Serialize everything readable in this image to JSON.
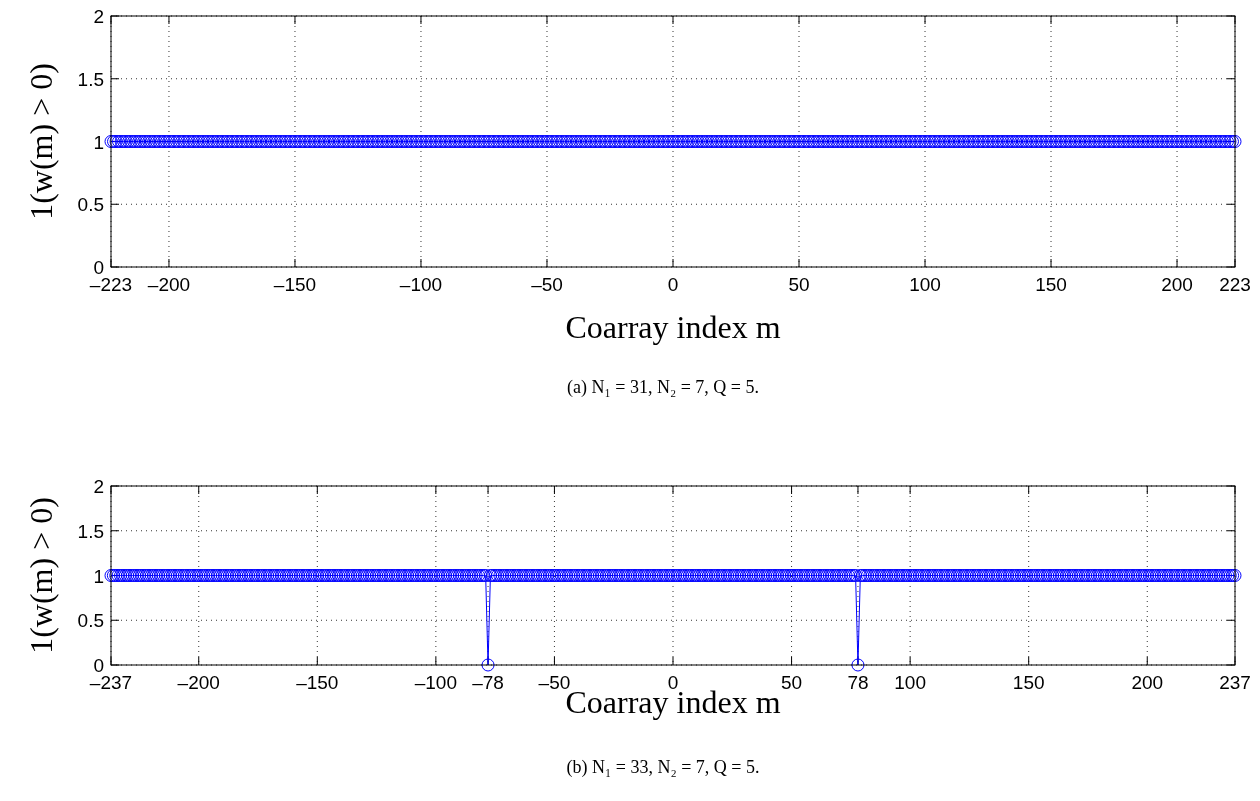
{
  "chart_data": [
    {
      "type": "line",
      "xlabel": "Coarray index m",
      "ylabel": "1(w(m) > 0)",
      "xlim": [
        -223,
        223
      ],
      "ylim": [
        0,
        2
      ],
      "xticks": [
        {
          "value": -223,
          "label": "–223"
        },
        {
          "value": -200,
          "label": "–200"
        },
        {
          "value": -150,
          "label": "–150"
        },
        {
          "value": -100,
          "label": "–100"
        },
        {
          "value": -50,
          "label": "–50"
        },
        0,
        50,
        100,
        150,
        200,
        223
      ],
      "yticks": [
        0,
        0.5,
        1,
        1.5,
        2
      ],
      "grid": true,
      "marker": "circle",
      "line_style": "solid",
      "annotations": [
        "(a) N₁ = 31, N₂ = 7, Q = 5."
      ],
      "x": [
        -223,
        -222,
        -221,
        -220,
        -219,
        -218,
        -217,
        -216,
        -215,
        -214,
        -213,
        -212,
        -211,
        -210,
        -209,
        -208,
        -207,
        -206,
        -205,
        -204,
        -203,
        -202,
        -201,
        -200,
        -199,
        -198,
        -197,
        -196,
        -195,
        -194,
        -193,
        -192,
        -191,
        -190,
        -189,
        -188,
        -187,
        -186,
        -185,
        -184,
        -183,
        -182,
        -181,
        -180,
        -179,
        -178,
        -177,
        -176,
        -175,
        -174,
        -173,
        -172,
        -171,
        -170,
        -169,
        -168,
        -167,
        -166,
        -165,
        -164,
        -163,
        -162,
        -161,
        -160,
        -159,
        -158,
        -157,
        -156,
        -155,
        -154,
        -153,
        -152,
        -151,
        -150,
        -149,
        -148,
        -147,
        -146,
        -145,
        -144,
        -143,
        -142,
        -141,
        -140,
        -139,
        -138,
        -137,
        -136,
        -135,
        -134,
        -133,
        -132,
        -131,
        -130,
        -129,
        -128,
        -127,
        -126,
        -125,
        -124,
        -123,
        -122,
        -121,
        -120,
        -119,
        -118,
        -117,
        -116,
        -115,
        -114,
        -113,
        -112,
        -111,
        -110,
        -109,
        -108,
        -107,
        -106,
        -105,
        -104,
        -103,
        -102,
        -101,
        -100,
        -99,
        -98,
        -97,
        -96,
        -95,
        -94,
        -93,
        -92,
        -91,
        -90,
        -89,
        -88,
        -87,
        -86,
        -85,
        -84,
        -83,
        -82,
        -81,
        -80,
        -79,
        -78,
        -77,
        -76,
        -75,
        -74,
        -73,
        -72,
        -71,
        -70,
        -69,
        -68,
        -67,
        -66,
        -65,
        -64,
        -63,
        -62,
        -61,
        -60,
        -59,
        -58,
        -57,
        -56,
        -55,
        -54,
        -53,
        -52,
        -51,
        -50,
        -49,
        -48,
        -47,
        -46,
        -45,
        -44,
        -43,
        -42,
        -41,
        -40,
        -39,
        -38,
        -37,
        -36,
        -35,
        -34,
        -33,
        -32,
        -31,
        -30,
        -29,
        -28,
        -27,
        -26,
        -25,
        -24,
        -23,
        -22,
        -21,
        -20,
        -19,
        -18,
        -17,
        -16,
        -15,
        -14,
        -13,
        -12,
        -11,
        -10,
        -9,
        -8,
        -7,
        -6,
        -5,
        -4,
        -3,
        -2,
        -1,
        0,
        1,
        2,
        3,
        4,
        5,
        6,
        7,
        8,
        9,
        10,
        11,
        12,
        13,
        14,
        15,
        16,
        17,
        18,
        19,
        20,
        21,
        22,
        23,
        24,
        25,
        26,
        27,
        28,
        29,
        30,
        31,
        32,
        33,
        34,
        35,
        36,
        37,
        38,
        39,
        40,
        41,
        42,
        43,
        44,
        45,
        46,
        47,
        48,
        49,
        50,
        51,
        52,
        53,
        54,
        55,
        56,
        57,
        58,
        59,
        60,
        61,
        62,
        63,
        64,
        65,
        66,
        67,
        68,
        69,
        70,
        71,
        72,
        73,
        74,
        75,
        76,
        77,
        78,
        79,
        80,
        81,
        82,
        83,
        84,
        85,
        86,
        87,
        88,
        89,
        90,
        91,
        92,
        93,
        94,
        95,
        96,
        97,
        98,
        99,
        100,
        101,
        102,
        103,
        104,
        105,
        106,
        107,
        108,
        109,
        110,
        111,
        112,
        113,
        114,
        115,
        116,
        117,
        118,
        119,
        120,
        121,
        122,
        123,
        124,
        125,
        126,
        127,
        128,
        129,
        130,
        131,
        132,
        133,
        134,
        135,
        136,
        137,
        138,
        139,
        140,
        141,
        142,
        143,
        144,
        145,
        146,
        147,
        148,
        149,
        150,
        151,
        152,
        153,
        154,
        155,
        156,
        157,
        158,
        159,
        160,
        161,
        162,
        163,
        164,
        165,
        166,
        167,
        168,
        169,
        170,
        171,
        172,
        173,
        174,
        175,
        176,
        177,
        178,
        179,
        180,
        181,
        182,
        183,
        184,
        185,
        186,
        187,
        188,
        189,
        190,
        191,
        192,
        193,
        194,
        195,
        196,
        197,
        198,
        199,
        200,
        201,
        202,
        203,
        204,
        205,
        206,
        207,
        208,
        209,
        210,
        211,
        212,
        213,
        214,
        215,
        216,
        217,
        218,
        219,
        220,
        221,
        222,
        223
      ],
      "series": [
        {
          "color": "#0000ff",
          "values": [
            1,
            1,
            1,
            1,
            1,
            1,
            1,
            1,
            1,
            1,
            1,
            1,
            1,
            1,
            1,
            1,
            1,
            1,
            1,
            1,
            1,
            1,
            1,
            1,
            1,
            1,
            1,
            1,
            1,
            1,
            1,
            1,
            1,
            1,
            1,
            1,
            1,
            1,
            1,
            1,
            1,
            1,
            1,
            1,
            1,
            1,
            1,
            1,
            1,
            1,
            1,
            1,
            1,
            1,
            1,
            1,
            1,
            1,
            1,
            1,
            1,
            1,
            1,
            1,
            1,
            1,
            1,
            1,
            1,
            1,
            1,
            1,
            1,
            1,
            1,
            1,
            1,
            1,
            1,
            1,
            1,
            1,
            1,
            1,
            1,
            1,
            1,
            1,
            1,
            1,
            1,
            1,
            1,
            1,
            1,
            1,
            1,
            1,
            1,
            1,
            1,
            1,
            1,
            1,
            1,
            1,
            1,
            1,
            1,
            1,
            1,
            1,
            1,
            1,
            1,
            1,
            1,
            1,
            1,
            1,
            1,
            1,
            1,
            1,
            1,
            1,
            1,
            1,
            1,
            1,
            1,
            1,
            1,
            1,
            1,
            1,
            1,
            1,
            1,
            1,
            1,
            1,
            1,
            1,
            1,
            1,
            1,
            1,
            1,
            1,
            1,
            1,
            1,
            1,
            1,
            1,
            1,
            1,
            1,
            1,
            1,
            1,
            1,
            1,
            1,
            1,
            1,
            1,
            1,
            1,
            1,
            1,
            1,
            1,
            1,
            1,
            1,
            1,
            1,
            1,
            1,
            1,
            1,
            1,
            1,
            1,
            1,
            1,
            1,
            1,
            1,
            1,
            1,
            1,
            1,
            1,
            1,
            1,
            1,
            1,
            1,
            1,
            1,
            1,
            1,
            1,
            1,
            1,
            1,
            1,
            1,
            1,
            1,
            1,
            1,
            1,
            1,
            1,
            1,
            1,
            1,
            1,
            1,
            1,
            1,
            1,
            1,
            1,
            1,
            1,
            1,
            1,
            1,
            1,
            1,
            1,
            1,
            1,
            1,
            1,
            1,
            1,
            1,
            1,
            1,
            1,
            1,
            1,
            1,
            1,
            1,
            1,
            1,
            1,
            1,
            1,
            1,
            1,
            1,
            1,
            1,
            1,
            1,
            1,
            1,
            1,
            1,
            1,
            1,
            1,
            1,
            1,
            1,
            1,
            1,
            1,
            1,
            1,
            1,
            1,
            1,
            1,
            1,
            1,
            1,
            1,
            1,
            1,
            1,
            1,
            1,
            1,
            1,
            1,
            1,
            1,
            1,
            1,
            1,
            1,
            1,
            1,
            1,
            1,
            1,
            1,
            1,
            1,
            1,
            1,
            1,
            1,
            1,
            1,
            1,
            1,
            1,
            1,
            1,
            1,
            1,
            1,
            1,
            1,
            1,
            1,
            1,
            1,
            1,
            1,
            1,
            1,
            1,
            1,
            1,
            1,
            1,
            1,
            1,
            1,
            1,
            1,
            1,
            1,
            1,
            1,
            1,
            1,
            1,
            1,
            1,
            1,
            1,
            1,
            1,
            1,
            1,
            1,
            1,
            1,
            1,
            1,
            1,
            1,
            1,
            1,
            1,
            1,
            1,
            1,
            1,
            1,
            1,
            1,
            1,
            1,
            1,
            1,
            1,
            1,
            1,
            1,
            1,
            1,
            1,
            1,
            1,
            1,
            1,
            1,
            1,
            1,
            1,
            1,
            1,
            1,
            1,
            1,
            1,
            1,
            1,
            1,
            1,
            1,
            1,
            1,
            1,
            1,
            1,
            1,
            1,
            1,
            1,
            1,
            1,
            1,
            1,
            1,
            1,
            1,
            1,
            1,
            1,
            1,
            1,
            1,
            1,
            1,
            1,
            1,
            1,
            1,
            1,
            1,
            1,
            1,
            1,
            1,
            1,
            1,
            1,
            1,
            1,
            1,
            1,
            1,
            1
          ]
        }
      ]
    },
    {
      "type": "line",
      "xlabel": "Coarray index m",
      "ylabel": "1(w(m) > 0)",
      "xlim": [
        -237,
        237
      ],
      "ylim": [
        0,
        2
      ],
      "xticks": [
        {
          "value": -237,
          "label": "–237"
        },
        {
          "value": -200,
          "label": "–200"
        },
        {
          "value": -150,
          "label": "–150"
        },
        {
          "value": -100,
          "label": "–100"
        },
        {
          "value": -78,
          "label": "–78"
        },
        {
          "value": -50,
          "label": "–50"
        },
        0,
        50,
        78,
        100,
        150,
        200,
        237
      ],
      "yticks": [
        0,
        0.5,
        1,
        1.5,
        2
      ],
      "grid": true,
      "marker": "circle",
      "line_style": "solid",
      "annotations": [
        "(b) N₁ = 33, N₂ = 7, Q = 5."
      ],
      "x": [
        -237,
        -236,
        -235,
        -234,
        -233,
        -232,
        -231,
        -230,
        -229,
        -228,
        -227,
        -226,
        -225,
        -224,
        -223,
        -222,
        -221,
        -220,
        -219,
        -218,
        -217,
        -216,
        -215,
        -214,
        -213,
        -212,
        -211,
        -210,
        -209,
        -208,
        -207,
        -206,
        -205,
        -204,
        -203,
        -202,
        -201,
        -200,
        -199,
        -198,
        -197,
        -196,
        -195,
        -194,
        -193,
        -192,
        -191,
        -190,
        -189,
        -188,
        -187,
        -186,
        -185,
        -184,
        -183,
        -182,
        -181,
        -180,
        -179,
        -178,
        -177,
        -176,
        -175,
        -174,
        -173,
        -172,
        -171,
        -170,
        -169,
        -168,
        -167,
        -166,
        -165,
        -164,
        -163,
        -162,
        -161,
        -160,
        -159,
        -158,
        -157,
        -156,
        -155,
        -154,
        -153,
        -152,
        -151,
        -150,
        -149,
        -148,
        -147,
        -146,
        -145,
        -144,
        -143,
        -142,
        -141,
        -140,
        -139,
        -138,
        -137,
        -136,
        -135,
        -134,
        -133,
        -132,
        -131,
        -130,
        -129,
        -128,
        -127,
        -126,
        -125,
        -124,
        -123,
        -122,
        -121,
        -120,
        -119,
        -118,
        -117,
        -116,
        -115,
        -114,
        -113,
        -112,
        -111,
        -110,
        -109,
        -108,
        -107,
        -106,
        -105,
        -104,
        -103,
        -102,
        -101,
        -100,
        -99,
        -98,
        -97,
        -96,
        -95,
        -94,
        -93,
        -92,
        -91,
        -90,
        -89,
        -88,
        -87,
        -86,
        -85,
        -84,
        -83,
        -82,
        -81,
        -80,
        -79,
        -78,
        -77,
        -76,
        -75,
        -74,
        -73,
        -72,
        -71,
        -70,
        -69,
        -68,
        -67,
        -66,
        -65,
        -64,
        -63,
        -62,
        -61,
        -60,
        -59,
        -58,
        -57,
        -56,
        -55,
        -54,
        -53,
        -52,
        -51,
        -50,
        -49,
        -48,
        -47,
        -46,
        -45,
        -44,
        -43,
        -42,
        -41,
        -40,
        -39,
        -38,
        -37,
        -36,
        -35,
        -34,
        -33,
        -32,
        -31,
        -30,
        -29,
        -28,
        -27,
        -26,
        -25,
        -24,
        -23,
        -22,
        -21,
        -20,
        -19,
        -18,
        -17,
        -16,
        -15,
        -14,
        -13,
        -12,
        -11,
        -10,
        -9,
        -8,
        -7,
        -6,
        -5,
        -4,
        -3,
        -2,
        -1,
        0,
        1,
        2,
        3,
        4,
        5,
        6,
        7,
        8,
        9,
        10,
        11,
        12,
        13,
        14,
        15,
        16,
        17,
        18,
        19,
        20,
        21,
        22,
        23,
        24,
        25,
        26,
        27,
        28,
        29,
        30,
        31,
        32,
        33,
        34,
        35,
        36,
        37,
        38,
        39,
        40,
        41,
        42,
        43,
        44,
        45,
        46,
        47,
        48,
        49,
        50,
        51,
        52,
        53,
        54,
        55,
        56,
        57,
        58,
        59,
        60,
        61,
        62,
        63,
        64,
        65,
        66,
        67,
        68,
        69,
        70,
        71,
        72,
        73,
        74,
        75,
        76,
        77,
        78,
        79,
        80,
        81,
        82,
        83,
        84,
        85,
        86,
        87,
        88,
        89,
        90,
        91,
        92,
        93,
        94,
        95,
        96,
        97,
        98,
        99,
        100,
        101,
        102,
        103,
        104,
        105,
        106,
        107,
        108,
        109,
        110,
        111,
        112,
        113,
        114,
        115,
        116,
        117,
        118,
        119,
        120,
        121,
        122,
        123,
        124,
        125,
        126,
        127,
        128,
        129,
        130,
        131,
        132,
        133,
        134,
        135,
        136,
        137,
        138,
        139,
        140,
        141,
        142,
        143,
        144,
        145,
        146,
        147,
        148,
        149,
        150,
        151,
        152,
        153,
        154,
        155,
        156,
        157,
        158,
        159,
        160,
        161,
        162,
        163,
        164,
        165,
        166,
        167,
        168,
        169,
        170,
        171,
        172,
        173,
        174,
        175,
        176,
        177,
        178,
        179,
        180,
        181,
        182,
        183,
        184,
        185,
        186,
        187,
        188,
        189,
        190,
        191,
        192,
        193,
        194,
        195,
        196,
        197,
        198,
        199,
        200,
        201,
        202,
        203,
        204,
        205,
        206,
        207,
        208,
        209,
        210,
        211,
        212,
        213,
        214,
        215,
        216,
        217,
        218,
        219,
        220,
        221,
        222,
        223,
        224,
        225,
        226,
        227,
        228,
        229,
        230,
        231,
        232,
        233,
        234,
        235,
        236,
        237
      ],
      "series": [
        {
          "color": "#0000ff",
          "values": [
            1,
            1,
            1,
            1,
            1,
            1,
            1,
            1,
            1,
            1,
            1,
            1,
            1,
            1,
            1,
            1,
            1,
            1,
            1,
            1,
            1,
            1,
            1,
            1,
            1,
            1,
            1,
            1,
            1,
            1,
            1,
            1,
            1,
            1,
            1,
            1,
            1,
            1,
            1,
            1,
            1,
            1,
            1,
            1,
            1,
            1,
            1,
            1,
            1,
            1,
            1,
            1,
            1,
            1,
            1,
            1,
            1,
            1,
            1,
            1,
            1,
            1,
            1,
            1,
            1,
            1,
            1,
            1,
            1,
            1,
            1,
            1,
            1,
            1,
            1,
            1,
            1,
            1,
            1,
            1,
            1,
            1,
            1,
            1,
            1,
            1,
            1,
            1,
            1,
            1,
            1,
            1,
            1,
            1,
            1,
            1,
            1,
            1,
            1,
            1,
            1,
            1,
            1,
            1,
            1,
            1,
            1,
            1,
            1,
            1,
            1,
            1,
            1,
            1,
            1,
            1,
            1,
            1,
            1,
            1,
            1,
            1,
            1,
            1,
            1,
            1,
            1,
            1,
            1,
            1,
            1,
            1,
            1,
            1,
            1,
            1,
            1,
            1,
            1,
            1,
            1,
            1,
            1,
            1,
            1,
            1,
            1,
            1,
            1,
            1,
            1,
            1,
            1,
            1,
            1,
            1,
            1,
            1,
            1,
            0,
            1,
            1,
            1,
            1,
            1,
            1,
            1,
            1,
            1,
            1,
            1,
            1,
            1,
            1,
            1,
            1,
            1,
            1,
            1,
            1,
            1,
            1,
            1,
            1,
            1,
            1,
            1,
            1,
            1,
            1,
            1,
            1,
            1,
            1,
            1,
            1,
            1,
            1,
            1,
            1,
            1,
            1,
            1,
            1,
            1,
            1,
            1,
            1,
            1,
            1,
            1,
            1,
            1,
            1,
            1,
            1,
            1,
            1,
            1,
            1,
            1,
            1,
            1,
            1,
            1,
            1,
            1,
            1,
            1,
            1,
            1,
            1,
            1,
            1,
            1,
            1,
            1,
            1,
            1,
            1,
            1,
            1,
            1,
            1,
            1,
            1,
            1,
            1,
            1,
            1,
            1,
            1,
            1,
            1,
            1,
            1,
            1,
            1,
            1,
            1,
            1,
            1,
            1,
            1,
            1,
            1,
            1,
            1,
            1,
            1,
            1,
            1,
            1,
            1,
            1,
            1,
            1,
            1,
            1,
            1,
            1,
            1,
            1,
            1,
            1,
            1,
            1,
            1,
            1,
            1,
            1,
            1,
            1,
            1,
            1,
            1,
            1,
            1,
            1,
            1,
            1,
            1,
            1,
            1,
            1,
            1,
            1,
            1,
            1,
            1,
            1,
            1,
            1,
            1,
            1,
            0,
            1,
            1,
            1,
            1,
            1,
            1,
            1,
            1,
            1,
            1,
            1,
            1,
            1,
            1,
            1,
            1,
            1,
            1,
            1,
            1,
            1,
            1,
            1,
            1,
            1,
            1,
            1,
            1,
            1,
            1,
            1,
            1,
            1,
            1,
            1,
            1,
            1,
            1,
            1,
            1,
            1,
            1,
            1,
            1,
            1,
            1,
            1,
            1,
            1,
            1,
            1,
            1,
            1,
            1,
            1,
            1,
            1,
            1,
            1,
            1,
            1,
            1,
            1,
            1,
            1,
            1,
            1,
            1,
            1,
            1,
            1,
            1,
            1,
            1,
            1,
            1,
            1,
            1,
            1,
            1,
            1,
            1,
            1,
            1,
            1,
            1,
            1,
            1,
            1,
            1,
            1,
            1,
            1,
            1,
            1,
            1,
            1,
            1,
            1,
            1,
            1,
            1,
            1,
            1,
            1,
            1,
            1,
            1,
            1,
            1,
            1,
            1,
            1,
            1,
            1,
            1,
            1,
            1,
            1,
            1,
            1,
            1,
            1,
            1,
            1,
            1,
            1,
            1,
            1,
            1,
            1,
            1,
            1,
            1,
            1,
            1,
            1,
            1,
            1,
            1,
            1,
            1,
            1,
            1,
            1,
            1,
            1,
            1,
            1,
            1,
            1,
            1,
            1,
            1,
            1,
            1,
            1,
            1,
            1
          ]
        }
      ]
    }
  ]
}
